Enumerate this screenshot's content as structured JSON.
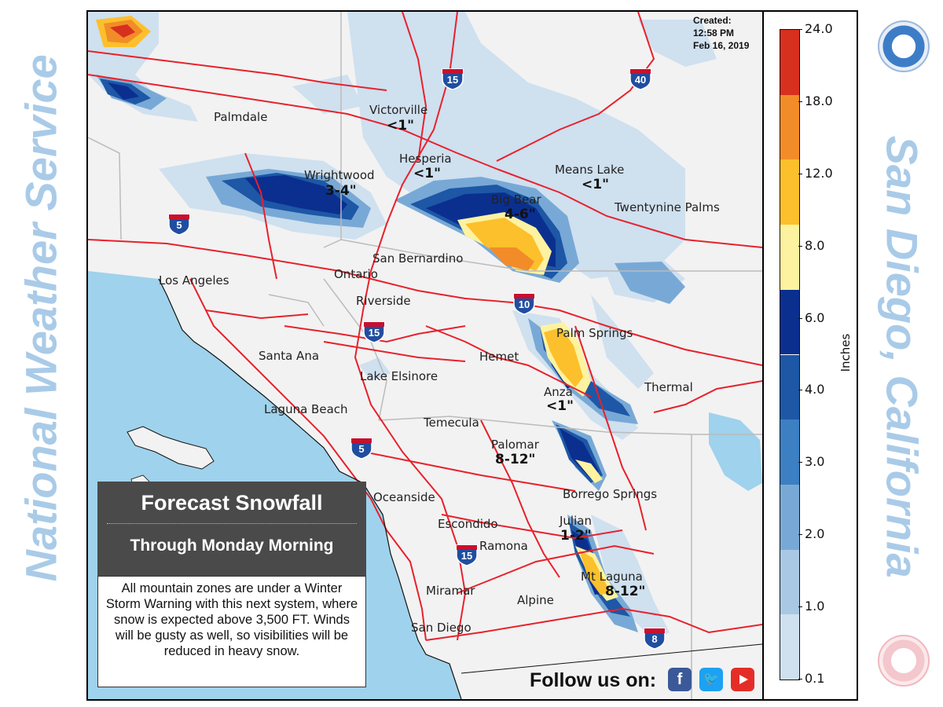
{
  "side_titles": {
    "left": "National Weather Service",
    "right": "San Diego, California"
  },
  "created": {
    "line1": "Created:",
    "line2": "12:58 PM",
    "line3": "Feb 16, 2019"
  },
  "title": {
    "main": "Forecast Snowfall",
    "sub": "Through Monday Morning"
  },
  "description": "All mountain zones are under a Winter Storm Warning with this next system, where snow is expected above 3,500 FT. Winds will be gusty as well, so visibilities will be reduced in heavy snow.",
  "follow": {
    "label": "Follow us on:",
    "icons": [
      "facebook-icon",
      "twitter-icon",
      "youtube-icon"
    ]
  },
  "places": {
    "palmdale": "Palmdale",
    "victorville": "Victorville",
    "hesperia": "Hesperia",
    "wrightwood": "Wrightwood",
    "means_lake": "Means Lake",
    "big_bear": "Big Bear",
    "twentynine_palms": "Twentynine Palms",
    "san_bernardino": "San Bernardino",
    "los_angeles": "Los Angeles",
    "ontario": "Ontario",
    "riverside": "Riverside",
    "palm_springs": "Palm Springs",
    "santa_ana": "Santa Ana",
    "hemet": "Hemet",
    "lake_elsinore": "Lake Elsinore",
    "anza": "Anza",
    "thermal": "Thermal",
    "laguna_beach": "Laguna Beach",
    "temecula": "Temecula",
    "palomar": "Palomar",
    "oceanside": "Oceanside",
    "borrego_springs": "Borrego Springs",
    "escondido": "Escondido",
    "julian": "Julian",
    "ramona": "Ramona",
    "mt_laguna": "Mt Laguna",
    "miramar": "Miramar",
    "alpine": "Alpine",
    "san_diego": "San Diego"
  },
  "amounts": {
    "victorville": "<1\"",
    "hesperia": "<1\"",
    "wrightwood": "3-4\"",
    "big_bear": "4-6\"",
    "means_lake": "<1\"",
    "anza": "<1\"",
    "palomar": "8-12\"",
    "julian": "1-2\"",
    "mt_laguna": "8-12\""
  },
  "interstates": {
    "i15_north": "15",
    "i40": "40",
    "i5_la": "5",
    "i15_mid": "15",
    "i10": "10",
    "i5_sd": "5",
    "i15_sd": "15",
    "i8": "8"
  },
  "legend": {
    "unit": "Inches",
    "ticks": [
      "24.0",
      "18.0",
      "12.0",
      "8.0",
      "6.0",
      "4.0",
      "3.0",
      "2.0",
      "1.0",
      "0.1"
    ],
    "colors": [
      "#d7301f",
      "#f28c28",
      "#fcc02c",
      "#fdf2a0",
      "#0b2f8f",
      "#1d57a6",
      "#3c7fc2",
      "#78a9d6",
      "#a8c8e3",
      "#cfe0ef"
    ]
  },
  "colors": {
    "ocean": "#9fd2ec",
    "roads": "#e8212c",
    "side_title": "#a9cbe8"
  }
}
